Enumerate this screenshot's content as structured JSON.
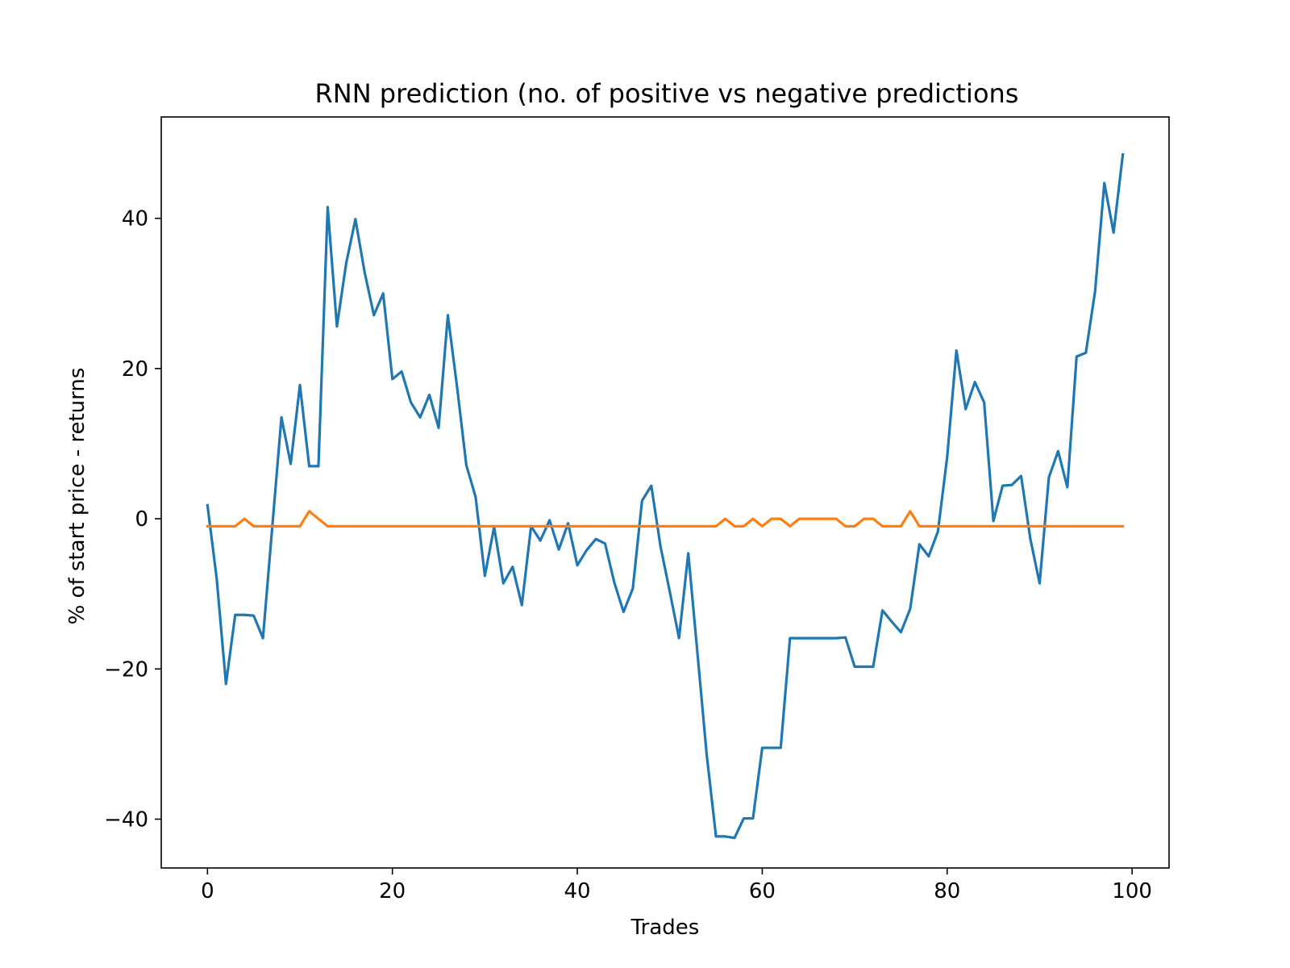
{
  "chart_data": {
    "type": "line",
    "title": "RNN prediction (no. of positive vs negative predictions",
    "xlabel": "Trades",
    "ylabel": "% of start price - returns",
    "xlim": [
      -5,
      104
    ],
    "ylim": [
      -46.5,
      53.5
    ],
    "xticks": [
      0,
      20,
      40,
      60,
      80,
      100
    ],
    "xtick_labels": [
      "0",
      "20",
      "40",
      "60",
      "80",
      "100"
    ],
    "yticks": [
      -40,
      -20,
      0,
      20,
      40
    ],
    "ytick_labels": [
      "−40",
      "−20",
      "0",
      "20",
      "40"
    ],
    "grid": false,
    "legend": false,
    "x": [
      0,
      1,
      2,
      3,
      4,
      5,
      6,
      7,
      8,
      9,
      10,
      11,
      12,
      13,
      14,
      15,
      16,
      17,
      18,
      19,
      20,
      21,
      22,
      23,
      24,
      25,
      26,
      27,
      28,
      29,
      30,
      31,
      32,
      33,
      34,
      35,
      36,
      37,
      38,
      39,
      40,
      41,
      42,
      43,
      44,
      45,
      46,
      47,
      48,
      49,
      50,
      51,
      52,
      53,
      54,
      55,
      56,
      57,
      58,
      59,
      60,
      61,
      62,
      63,
      64,
      65,
      66,
      67,
      68,
      69,
      70,
      71,
      72,
      73,
      74,
      75,
      76,
      77,
      78,
      79,
      80,
      81,
      82,
      83,
      84,
      85,
      86,
      87,
      88,
      89,
      90,
      91,
      92,
      93,
      94,
      95,
      96,
      97,
      98,
      99
    ],
    "series": [
      {
        "color": "#1f77b4",
        "values": [
          1.8,
          -8,
          -22,
          -12.8,
          -12.8,
          -12.9,
          -15.9,
          -1.2,
          13.5,
          7.3,
          17.8,
          7,
          7,
          41.5,
          25.6,
          34,
          39.9,
          32.8,
          27.1,
          30,
          18.6,
          19.6,
          15.5,
          13.5,
          16.5,
          12.1,
          27.1,
          17.5,
          7.1,
          2.9,
          -7.6,
          -1.1,
          -8.6,
          -6.4,
          -11.5,
          -1,
          -2.9,
          -0.2,
          -4.1,
          -0.6,
          -6.2,
          -4.2,
          -2.7,
          -3.3,
          -8.5,
          -12.4,
          -9.3,
          2.4,
          4.4,
          -3.7,
          -9.7,
          -15.9,
          -4.6,
          -18,
          -31.5,
          -42.3,
          -42.3,
          -42.5,
          -39.9,
          -39.9,
          -30.5,
          -30.5,
          -30.5,
          -15.9,
          -15.9,
          -15.9,
          -15.9,
          -15.9,
          -15.9,
          -15.8,
          -19.7,
          -19.7,
          -19.7,
          -12.2,
          -13.7,
          -15.1,
          -12,
          -3.4,
          -5,
          -1.7,
          8.2,
          22.4,
          14.6,
          18.2,
          15.5,
          -0.3,
          4.4,
          4.5,
          5.7,
          -2.7,
          -8.6,
          5.5,
          9,
          4.2,
          21.6,
          22.1,
          30.3,
          44.7,
          38.1,
          48.5
        ]
      },
      {
        "color": "#ff7f0e",
        "values": [
          -1,
          -1,
          -1,
          -1,
          0,
          -1,
          -1,
          -1,
          -1,
          -1,
          -1,
          1,
          0,
          -1,
          -1,
          -1,
          -1,
          -1,
          -1,
          -1,
          -1,
          -1,
          -1,
          -1,
          -1,
          -1,
          -1,
          -1,
          -1,
          -1,
          -1,
          -1,
          -1,
          -1,
          -1,
          -1,
          -1,
          -1,
          -1,
          -1,
          -1,
          -1,
          -1,
          -1,
          -1,
          -1,
          -1,
          -1,
          -1,
          -1,
          -1,
          -1,
          -1,
          -1,
          -1,
          -1,
          0,
          -1,
          -1,
          0,
          -1,
          0,
          0,
          -1,
          0,
          0,
          0,
          0,
          0,
          -1,
          -1,
          0,
          0,
          -1,
          -1,
          -1,
          1,
          -1,
          -1,
          -1,
          -1,
          -1,
          -1,
          -1,
          -1,
          -1,
          -1,
          -1,
          -1,
          -1,
          -1,
          -1,
          -1,
          -1,
          -1,
          -1,
          -1,
          -1,
          -1,
          -1
        ]
      }
    ]
  }
}
